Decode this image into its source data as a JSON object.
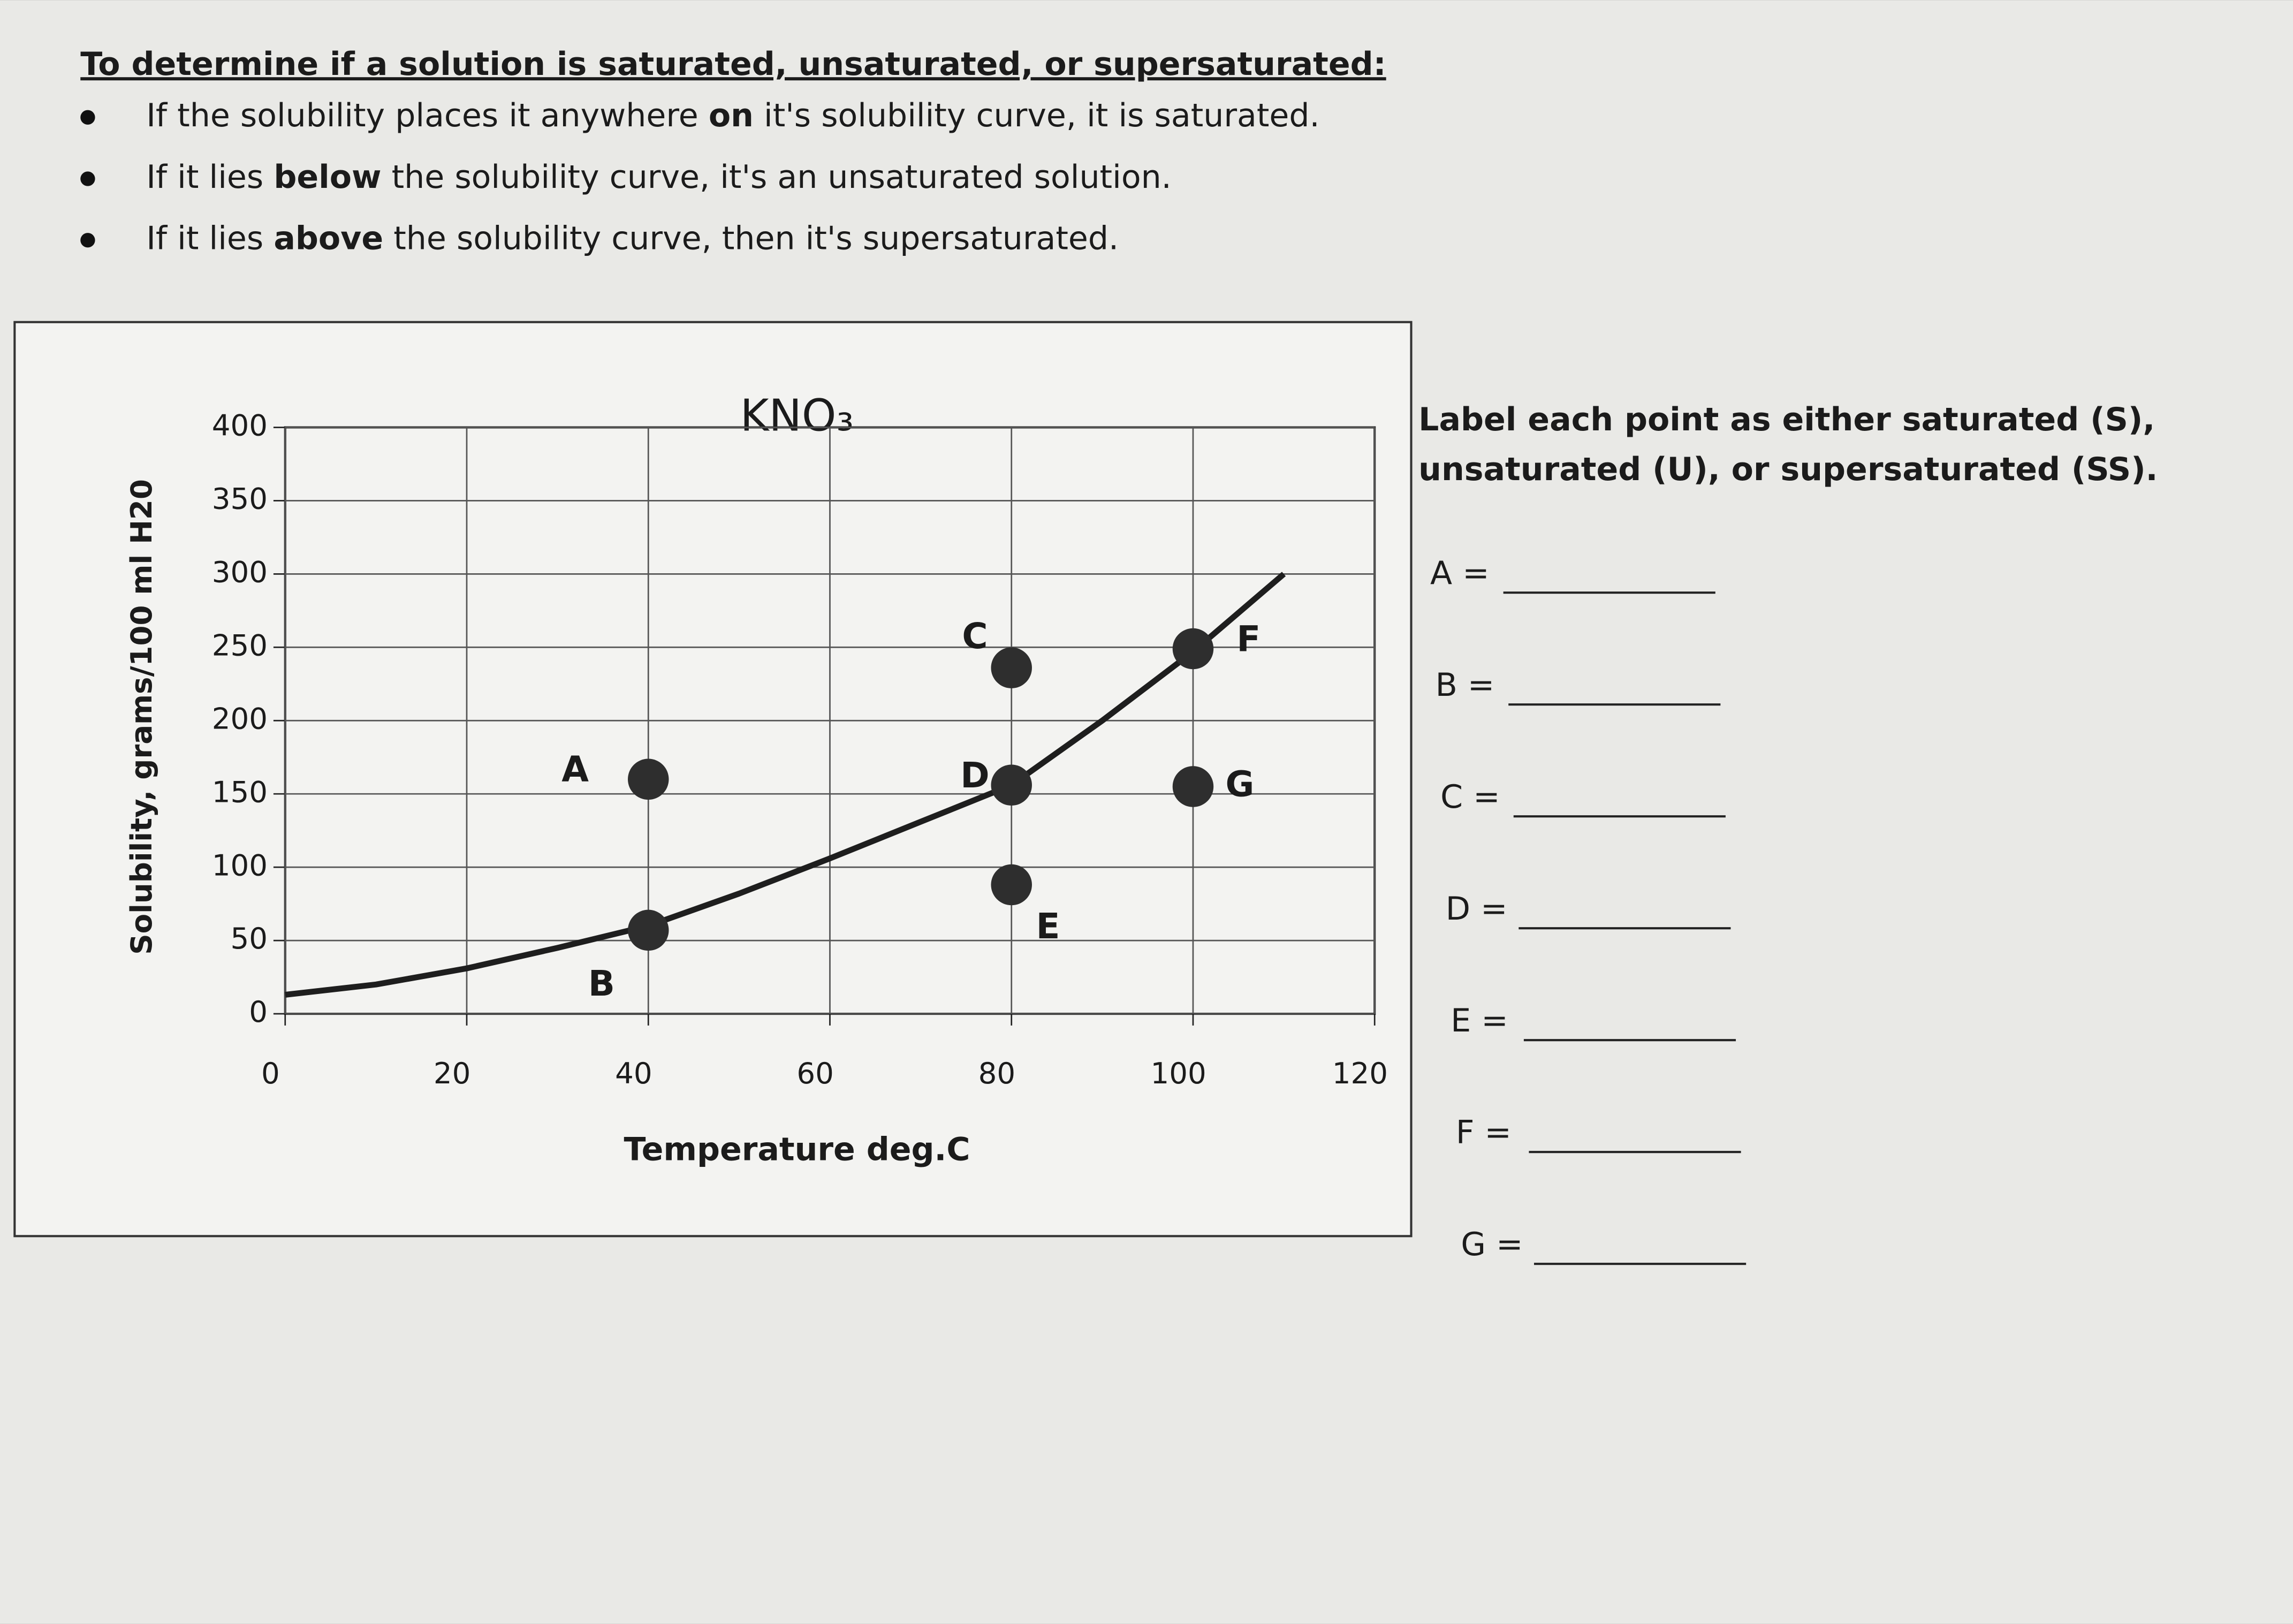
{
  "header": {
    "title": "To determine if a solution is saturated, unsaturated, or supersaturated:",
    "bullets": [
      [
        "If the solubility places it anywhere ",
        "on",
        " it's solubility curve, it is saturated."
      ],
      [
        "If it lies ",
        "below",
        " the solubility curve, it's an unsaturated solution."
      ],
      [
        "If it lies ",
        "above",
        " the solubility curve, then it's supersaturated."
      ]
    ]
  },
  "instructions": [
    "Label each point as either saturated (S),",
    "unsaturated (U), or supersaturated (SS)."
  ],
  "answers": [
    "A =",
    "B =",
    "C =",
    "D =",
    "E =",
    "F =",
    "G ="
  ],
  "chart_data": {
    "type": "line",
    "title": "KNO₃",
    "x_label": "Temperature deg.C",
    "y_label": "Solubility, grams/100 ml H20",
    "xlim": [
      0,
      120
    ],
    "ylim": [
      0,
      400
    ],
    "xticks": [
      0,
      20,
      40,
      60,
      80,
      100,
      120
    ],
    "yticks": [
      0,
      50,
      100,
      150,
      200,
      250,
      300,
      350,
      400
    ],
    "grid": true,
    "series": [
      {
        "name": "KNO₃",
        "color": "#1e1e1e",
        "x": [
          0,
          10,
          20,
          30,
          40,
          50,
          60,
          70,
          80,
          90,
          100,
          110
        ],
        "values": [
          13,
          20,
          31,
          45,
          60,
          82,
          106,
          131,
          156,
          200,
          247,
          300
        ]
      }
    ],
    "points": [
      {
        "label": "A",
        "x": 40,
        "y": 160
      },
      {
        "label": "B",
        "x": 40,
        "y": 57
      },
      {
        "label": "C",
        "x": 80,
        "y": 236
      },
      {
        "label": "D",
        "x": 80,
        "y": 156
      },
      {
        "label": "E",
        "x": 80,
        "y": 88
      },
      {
        "label": "F",
        "x": 100,
        "y": 249
      },
      {
        "label": "G",
        "x": 100,
        "y": 155
      }
    ],
    "point_color": "#2e2e2e"
  }
}
